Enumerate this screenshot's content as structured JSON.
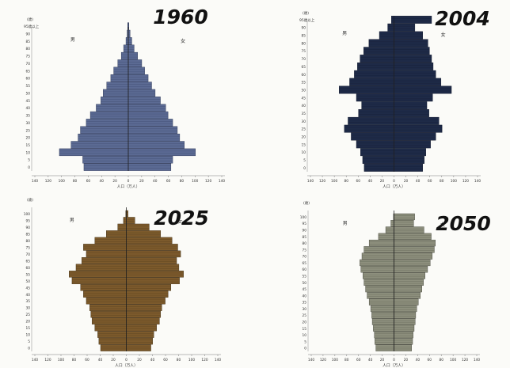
{
  "chart_data": [
    {
      "type": "bar",
      "title": "1960",
      "y_unit_label": "(歳)",
      "top_age_label": "95歳以上",
      "left_label": "男",
      "right_label": "女",
      "xlabel": "人口（万人）",
      "xlim": [
        -160,
        160
      ],
      "x_ticks": [
        "140",
        "120",
        "100",
        "80",
        "60",
        "40",
        "20",
        "0",
        "20",
        "40",
        "60",
        "80",
        "100",
        "120",
        "140"
      ],
      "y_ticks": [
        "90",
        "85",
        "80",
        "75",
        "70",
        "65",
        "60",
        "55",
        "50",
        "45",
        "40",
        "35",
        "30",
        "25",
        "20",
        "15",
        "10",
        "5",
        "0"
      ],
      "fill_color": "#5b6a93",
      "line_color": "#26304f",
      "categories": [
        "0",
        "5",
        "10",
        "15",
        "20",
        "25",
        "30",
        "35",
        "40",
        "45",
        "50",
        "55",
        "60",
        "65",
        "70",
        "75",
        "80",
        "85",
        "90",
        "95"
      ],
      "series": [
        {
          "values": [
            76,
            78,
            118,
            98,
            86,
            82,
            72,
            65,
            55,
            47,
            43,
            37,
            30,
            25,
            18,
            12,
            8,
            4,
            2,
            1
          ]
        },
        {
          "values": [
            73,
            76,
            115,
            96,
            88,
            84,
            76,
            68,
            64,
            55,
            46,
            40,
            34,
            28,
            23,
            16,
            10,
            6,
            3,
            1
          ]
        }
      ]
    },
    {
      "type": "bar",
      "title": "2004",
      "y_unit_label": "(歳)",
      "top_age_label": "95歳以上",
      "left_label": "男",
      "right_label": "女",
      "xlabel": "人口（万人）",
      "xlim": [
        -160,
        160
      ],
      "x_ticks": [
        "140",
        "120",
        "100",
        "80",
        "60",
        "40",
        "20",
        "0",
        "20",
        "40",
        "60",
        "80",
        "100",
        "120",
        "140"
      ],
      "y_ticks": [
        "90",
        "85",
        "80",
        "75",
        "70",
        "65",
        "60",
        "55",
        "50",
        "45",
        "40",
        "35",
        "30",
        "25",
        "20",
        "15",
        "10",
        "5",
        "0"
      ],
      "fill_color": "#1e2a47",
      "line_color": "#0f1629",
      "categories": [
        "0",
        "5",
        "10",
        "15",
        "20",
        "25",
        "30",
        "35",
        "40",
        "45",
        "50",
        "55",
        "60",
        "65",
        "70",
        "75",
        "80",
        "85",
        "90",
        "95"
      ],
      "series": [
        {
          "values": [
            57,
            60,
            64,
            72,
            82,
            95,
            88,
            68,
            62,
            72,
            105,
            85,
            76,
            70,
            65,
            58,
            48,
            28,
            12,
            5
          ]
        },
        {
          "values": [
            55,
            58,
            61,
            70,
            80,
            92,
            86,
            67,
            63,
            74,
            110,
            90,
            80,
            75,
            72,
            68,
            65,
            55,
            40,
            72
          ]
        }
      ]
    },
    {
      "type": "bar",
      "title": "2025",
      "y_unit_label": "(歳)",
      "left_label": "男",
      "right_label": "女",
      "xlabel": "人口（万人）",
      "xlim": [
        -160,
        160
      ],
      "x_ticks": [
        "140",
        "120",
        "100",
        "80",
        "60",
        "40",
        "20",
        "0",
        "20",
        "40",
        "60",
        "80",
        "100",
        "120",
        "140"
      ],
      "y_ticks": [
        "100",
        "95",
        "90",
        "85",
        "80",
        "75",
        "70",
        "65",
        "60",
        "55",
        "50",
        "45",
        "40",
        "35",
        "30",
        "25",
        "20",
        "15",
        "10",
        "5",
        "0"
      ],
      "fill_color": "#7c5a2c",
      "line_color": "#3a2a12",
      "categories": [
        "0",
        "5",
        "10",
        "15",
        "20",
        "25",
        "30",
        "35",
        "40",
        "45",
        "50",
        "55",
        "60",
        "65",
        "70",
        "75",
        "80",
        "85",
        "90",
        "95",
        "100"
      ],
      "series": [
        {
          "values": [
            45,
            48,
            50,
            55,
            60,
            62,
            64,
            70,
            75,
            80,
            95,
            100,
            88,
            78,
            70,
            75,
            55,
            35,
            15,
            5,
            1
          ]
        },
        {
          "values": [
            43,
            46,
            48,
            53,
            58,
            60,
            62,
            68,
            73,
            78,
            93,
            100,
            92,
            88,
            95,
            90,
            80,
            60,
            40,
            15,
            3
          ]
        }
      ]
    },
    {
      "type": "bar",
      "title": "2050",
      "y_unit_label": "(歳)",
      "left_label": "男",
      "right_label": "女",
      "xlabel": "人口（万人）",
      "xlim": [
        -160,
        160
      ],
      "x_ticks": [
        "140",
        "120",
        "100",
        "80",
        "60",
        "40",
        "20",
        "0",
        "20",
        "40",
        "60",
        "80",
        "100",
        "120",
        "140"
      ],
      "y_ticks": [
        "100",
        "95",
        "90",
        "85",
        "80",
        "75",
        "70",
        "65",
        "60",
        "55",
        "50",
        "45",
        "40",
        "35",
        "30",
        "25",
        "20",
        "15",
        "10",
        "5",
        "0"
      ],
      "fill_color": "#8d8f7d",
      "line_color": "#3c3e33",
      "categories": [
        "0",
        "5",
        "10",
        "15",
        "20",
        "25",
        "30",
        "35",
        "40",
        "45",
        "50",
        "55",
        "60",
        "65",
        "70",
        "75",
        "80",
        "85",
        "90",
        "95",
        "100"
      ],
      "series": [
        {
          "values": [
            35,
            37,
            38,
            40,
            42,
            43,
            45,
            48,
            52,
            55,
            58,
            60,
            64,
            66,
            62,
            58,
            48,
            30,
            16,
            6,
            1
          ]
        },
        {
          "values": [
            34,
            36,
            37,
            39,
            41,
            42,
            44,
            47,
            51,
            54,
            57,
            60,
            65,
            70,
            74,
            78,
            80,
            72,
            58,
            38,
            40
          ]
        }
      ]
    }
  ]
}
